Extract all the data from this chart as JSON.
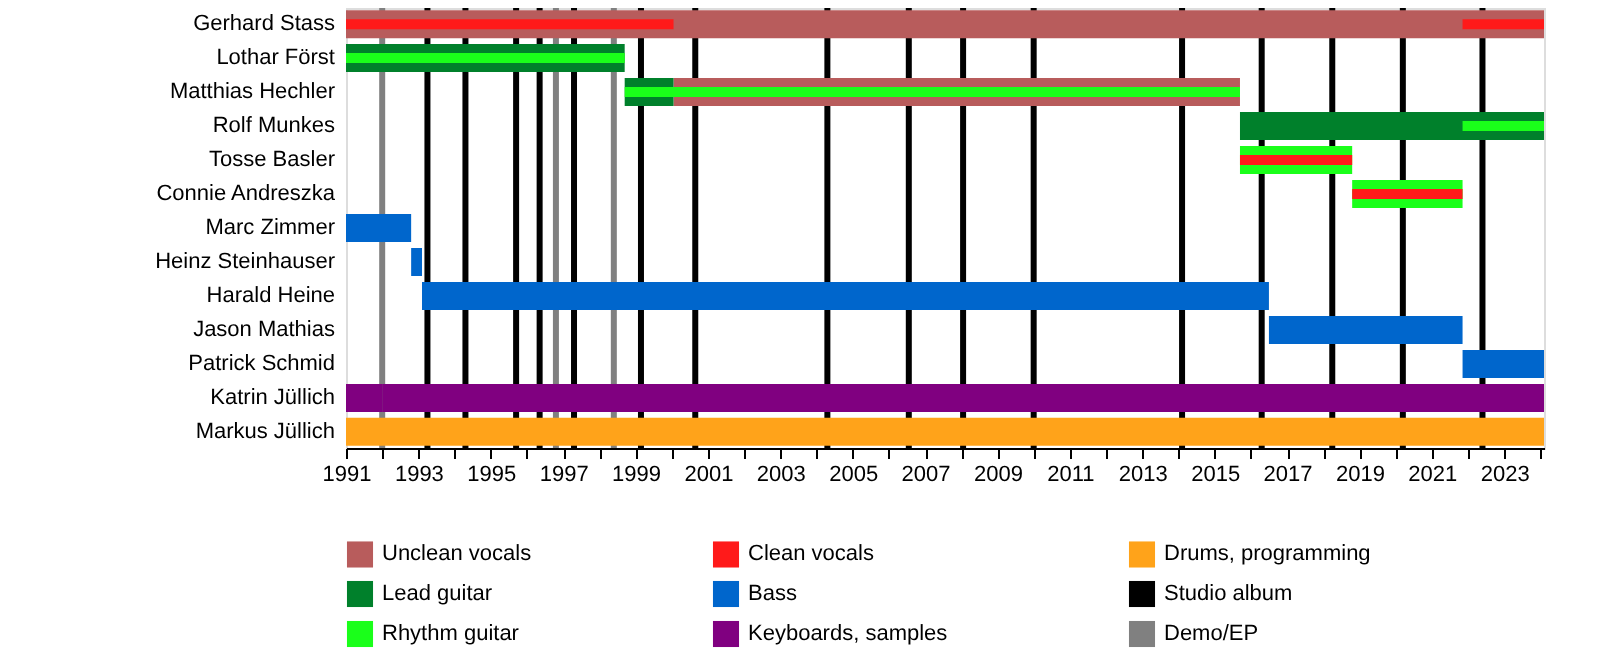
{
  "chart_data": {
    "type": "bar",
    "orientation": "horizontal",
    "categories": [
      "Gerhard Stass",
      "Lothar Först",
      "Matthias Hechler",
      "Rolf Munkes",
      "Tosse Basler",
      "Connie Andreszka",
      "Marc Zimmer",
      "Heinz Steinhauser",
      "Harald Heine",
      "Jason Mathias",
      "Patrick Schmid",
      "Katrin Jüllich",
      "Markus Jüllich"
    ],
    "series": [
      {
        "name": "Unclean vocals",
        "color": "#b85c5c",
        "base": [
          1991,
          null,
          2000.05,
          null,
          null,
          null,
          null,
          null,
          null,
          null,
          null,
          null,
          null
        ],
        "values": [
          33.1,
          null,
          15.65,
          null,
          null,
          null,
          null,
          null,
          null,
          null,
          null,
          null,
          null
        ]
      },
      {
        "name": "Lead guitar",
        "color": "#00802b",
        "base": [
          null,
          1991,
          1998.7,
          2015.7,
          null,
          null,
          null,
          null,
          null,
          null,
          null,
          null,
          null
        ],
        "values": [
          null,
          7.7,
          1.35,
          8.4,
          null,
          null,
          null,
          null,
          null,
          null,
          null,
          null,
          null
        ]
      },
      {
        "name": "Rhythm guitar",
        "color": "#1aff1a",
        "base": [
          null,
          1991,
          1998.7,
          2021.85,
          2015.7,
          2018.8,
          null,
          null,
          null,
          null,
          null,
          null,
          null
        ],
        "values": [
          null,
          7.7,
          17.0,
          2.25,
          3.1,
          3.05,
          null,
          null,
          null,
          null,
          null,
          null,
          null
        ]
      },
      {
        "name": "Clean vocals",
        "color": "#ff1a1a",
        "base": [
          1991,
          null,
          null,
          null,
          2015.7,
          2018.8,
          null,
          null,
          null,
          null,
          null,
          null,
          null
        ],
        "values": [
          9.05,
          null,
          null,
          null,
          3.1,
          3.05,
          null,
          null,
          null,
          null,
          null,
          null,
          null
        ]
      },
      {
        "color": "#ff1a1a",
        "base": [
          2021.85,
          null,
          null,
          null,
          null,
          null,
          null,
          null,
          null,
          null,
          null,
          null,
          null
        ],
        "values": [
          2.25,
          null,
          null,
          null,
          null,
          null,
          null,
          null,
          null,
          null,
          null,
          null,
          null
        ]
      },
      {
        "name": "Bass",
        "color": "#0066cc",
        "base": [
          null,
          null,
          null,
          null,
          null,
          null,
          1991,
          1992.8,
          1993.1,
          2016.5,
          2021.85,
          null,
          null
        ],
        "values": [
          null,
          null,
          null,
          null,
          null,
          null,
          1.8,
          0.3,
          23.4,
          5.35,
          2.25,
          null,
          null
        ]
      },
      {
        "name": "Keyboards, samples",
        "color": "#800080",
        "base": [
          null,
          null,
          null,
          null,
          null,
          null,
          null,
          null,
          null,
          null,
          null,
          1992,
          null
        ],
        "values": [
          null,
          null,
          null,
          null,
          null,
          null,
          null,
          null,
          null,
          null,
          null,
          32.1,
          null
        ]
      },
      {
        "color": "#800080",
        "base": [
          null,
          null,
          null,
          null,
          null,
          null,
          null,
          null,
          null,
          null,
          null,
          1991,
          null
        ],
        "values": [
          null,
          null,
          null,
          null,
          null,
          null,
          null,
          null,
          null,
          null,
          null,
          1,
          null
        ]
      },
      {
        "name": "Drums, programming",
        "color": "#ffa31a",
        "base": [
          null,
          null,
          null,
          null,
          null,
          null,
          null,
          null,
          null,
          null,
          null,
          null,
          1991
        ],
        "values": [
          null,
          null,
          null,
          null,
          null,
          null,
          null,
          null,
          null,
          null,
          null,
          null,
          33.1
        ]
      }
    ],
    "ref_lines": [
      {
        "axis": "x",
        "value": 1993.25,
        "label": "Studio album",
        "color": "#000000"
      },
      {
        "axis": "x",
        "value": 1994.3,
        "color": "#000000"
      },
      {
        "axis": "x",
        "value": 1995.7,
        "color": "#000000"
      },
      {
        "axis": "x",
        "value": 1996.35,
        "color": "#000000"
      },
      {
        "axis": "x",
        "value": 1997.3,
        "color": "#000000"
      },
      {
        "axis": "x",
        "value": 1999.15,
        "color": "#000000"
      },
      {
        "axis": "x",
        "value": 2000.65,
        "color": "#000000"
      },
      {
        "axis": "x",
        "value": 2004.3,
        "color": "#000000"
      },
      {
        "axis": "x",
        "value": 2006.55,
        "color": "#000000"
      },
      {
        "axis": "x",
        "value": 2008.05,
        "color": "#000000"
      },
      {
        "axis": "x",
        "value": 2010.0,
        "color": "#000000"
      },
      {
        "axis": "x",
        "value": 2014.1,
        "color": "#000000"
      },
      {
        "axis": "x",
        "value": 2016.3,
        "color": "#000000"
      },
      {
        "axis": "x",
        "value": 2018.25,
        "color": "#000000"
      },
      {
        "axis": "x",
        "value": 2020.2,
        "color": "#000000"
      },
      {
        "axis": "x",
        "value": 2022.4,
        "color": "#000000"
      },
      {
        "axis": "x",
        "value": 1992.0,
        "label": "Demo/EP",
        "color": "#808080"
      },
      {
        "axis": "x",
        "value": 1996.8,
        "color": "#808080"
      },
      {
        "axis": "x",
        "value": 1998.4,
        "color": "#808080"
      }
    ],
    "xlim": [
      1991,
      2024.1
    ],
    "xticks": [
      1991,
      {
        "value": 1992,
        "label": null
      },
      1993,
      {
        "value": 1994,
        "label": null
      },
      1995,
      {
        "value": 1996,
        "label": null
      },
      1997,
      {
        "value": 1998,
        "label": null
      },
      1999,
      {
        "value": 2000,
        "label": null
      },
      2001,
      {
        "value": 2002,
        "label": null
      },
      2003,
      {
        "value": 2004,
        "label": null
      },
      2005,
      {
        "value": 2006,
        "label": null
      },
      2007,
      {
        "value": 2008,
        "label": null
      },
      2009,
      {
        "value": 2010,
        "label": null
      },
      2011,
      {
        "value": 2012,
        "label": null
      },
      2013,
      {
        "value": 2014,
        "label": null
      },
      2015,
      {
        "value": 2016,
        "label": null
      },
      2017,
      {
        "value": 2018,
        "label": null
      },
      2019,
      {
        "value": 2020,
        "label": null
      },
      2021,
      {
        "value": 2022,
        "label": null
      },
      2023,
      {
        "value": 2024,
        "label": null
      }
    ],
    "grid": false,
    "legend": "bottom"
  }
}
